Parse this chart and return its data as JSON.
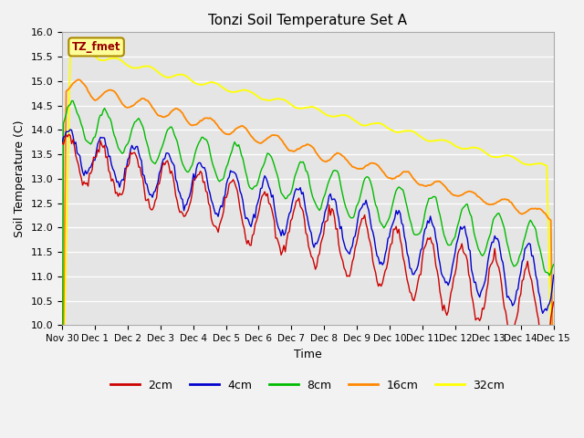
{
  "title": "Tonzi Soil Temperature Set A",
  "xlabel": "Time",
  "ylabel": "Soil Temperature (C)",
  "ylim": [
    10.0,
    16.0
  ],
  "yticks": [
    10.0,
    10.5,
    11.0,
    11.5,
    12.0,
    12.5,
    13.0,
    13.5,
    14.0,
    14.5,
    15.0,
    15.5,
    16.0
  ],
  "bg_color": "#e5e5e5",
  "fig_color": "#f2f2f2",
  "colors": {
    "2cm": "#cc0000",
    "4cm": "#0000cc",
    "8cm": "#00bb00",
    "16cm": "#ff8800",
    "32cm": "#ffff00"
  },
  "label_box_text": "TZ_fmet",
  "label_box_facecolor": "#ffff99",
  "label_box_edgecolor": "#aa8800",
  "x_start": 0,
  "x_end": 15,
  "xtick_positions": [
    0,
    1,
    2,
    3,
    4,
    5,
    6,
    7,
    8,
    9,
    10,
    11,
    12,
    13,
    14,
    15
  ],
  "xtick_labels": [
    "Nov 30",
    "Dec 1",
    "Dec 2",
    "Dec 3",
    "Dec 4",
    "Dec 5",
    "Dec 6",
    "Dec 7",
    "Dec 8",
    "Dec 9",
    "Dec 10",
    "Dec 11",
    "Dec 12",
    "Dec 13",
    "Dec 14",
    "Dec 15"
  ]
}
